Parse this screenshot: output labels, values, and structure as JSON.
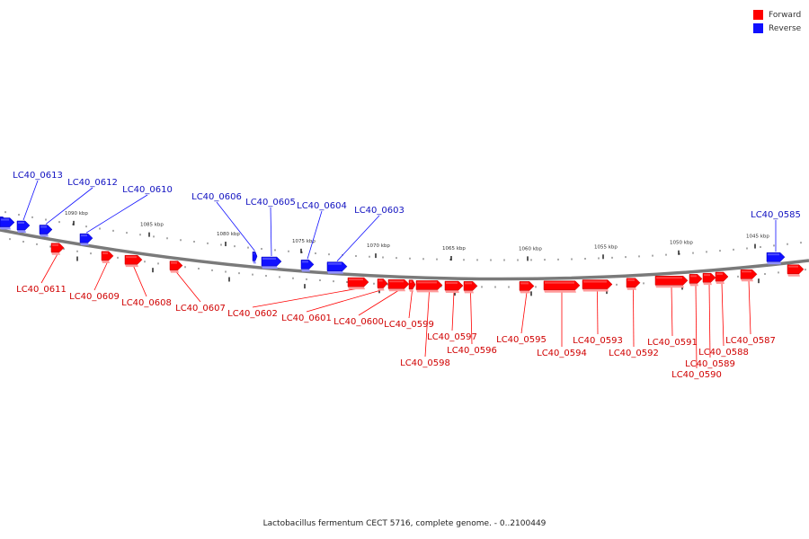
{
  "colors": {
    "forward": "#ff0000",
    "reverse": "#1010ff",
    "backbone": "#7a7a7a"
  },
  "legend": [
    {
      "key": "forward",
      "label": "Forward"
    },
    {
      "key": "reverse",
      "label": "Reverse"
    }
  ],
  "caption": "Lactobacillus fermentum CECT 5716, complete genome. - 0..2100449",
  "ticks": [
    "1090 kbp",
    "1085 kbp",
    "1080 kbp",
    "1075 kbp",
    "1070 kbp",
    "1065 kbp",
    "1060 kbp",
    "1055 kbp",
    "1050 kbp",
    "1045 kbp"
  ],
  "genes": [
    {
      "strand": "reverse",
      "label": ""
    },
    {
      "strand": "reverse",
      "label": ""
    },
    {
      "strand": "reverse",
      "label": "LC40_0613"
    },
    {
      "strand": "reverse",
      "label": "LC40_0612"
    },
    {
      "strand": "reverse",
      "label": "LC40_0610"
    },
    {
      "strand": "reverse",
      "label": "LC40_0606"
    },
    {
      "strand": "reverse",
      "label": "LC40_0605"
    },
    {
      "strand": "reverse",
      "label": "LC40_0604"
    },
    {
      "strand": "reverse",
      "label": "LC40_0603"
    },
    {
      "strand": "reverse",
      "label": "LC40_0585"
    },
    {
      "strand": "forward",
      "label": "LC40_0611"
    },
    {
      "strand": "forward",
      "label": "LC40_0609"
    },
    {
      "strand": "forward",
      "label": "LC40_0608"
    },
    {
      "strand": "forward",
      "label": "LC40_0607"
    },
    {
      "strand": "forward",
      "label": "LC40_0602"
    },
    {
      "strand": "forward",
      "label": "LC40_0601"
    },
    {
      "strand": "forward",
      "label": "LC40_0600"
    },
    {
      "strand": "forward",
      "label": "LC40_0599"
    },
    {
      "strand": "forward",
      "label": "LC40_0598"
    },
    {
      "strand": "forward",
      "label": "LC40_0597"
    },
    {
      "strand": "forward",
      "label": "LC40_0596"
    },
    {
      "strand": "forward",
      "label": "LC40_0595"
    },
    {
      "strand": "forward",
      "label": "LC40_0594"
    },
    {
      "strand": "forward",
      "label": "LC40_0593"
    },
    {
      "strand": "forward",
      "label": "LC40_0592"
    },
    {
      "strand": "forward",
      "label": "LC40_0591"
    },
    {
      "strand": "forward",
      "label": "LC40_0590"
    },
    {
      "strand": "forward",
      "label": "LC40_0589"
    },
    {
      "strand": "forward",
      "label": "LC40_0588"
    },
    {
      "strand": "forward",
      "label": "LC40_0587"
    },
    {
      "strand": "forward",
      "label": ""
    }
  ]
}
